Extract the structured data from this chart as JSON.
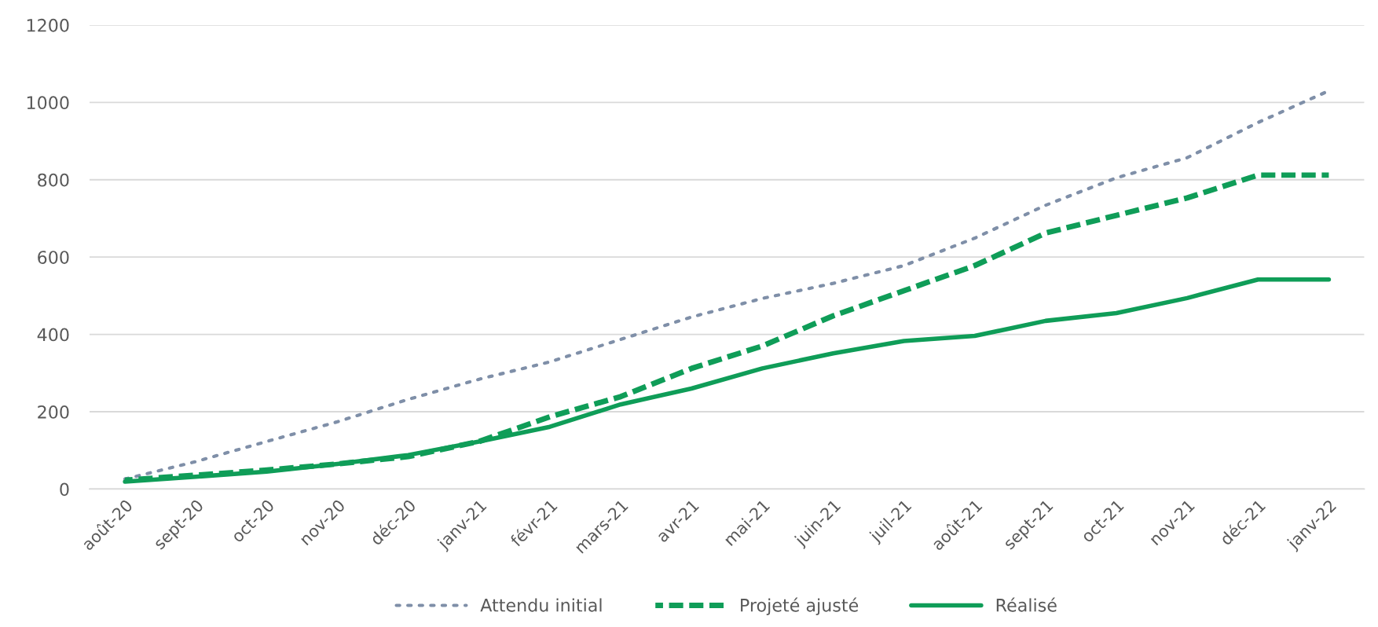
{
  "chart_data": {
    "type": "line",
    "categories": [
      "août-20",
      "sept-20",
      "oct-20",
      "nov-20",
      "déc-20",
      "janv-21",
      "févr-21",
      "mars-21",
      "avr-21",
      "mai-21",
      "juin-21",
      "juil-21",
      "août-21",
      "sept-21",
      "oct-21",
      "nov-21",
      "déc-21",
      "janv-22"
    ],
    "series": [
      {
        "name": "Attendu initial",
        "color": "#7f8fa8",
        "line_style": "dotted",
        "values": [
          26,
          71,
          123,
          174,
          232,
          284,
          329,
          387,
          445,
          493,
          532,
          578,
          649,
          734,
          805,
          857,
          948,
          1030
        ]
      },
      {
        "name": "Projeté ajusté",
        "color": "#0f9d58",
        "line_style": "dashed",
        "values": [
          23,
          36,
          49,
          65,
          84,
          123,
          187,
          239,
          312,
          370,
          448,
          513,
          578,
          662,
          708,
          753,
          812,
          812
        ]
      },
      {
        "name": "Réalisé",
        "color": "#0f9d58",
        "line_style": "solid",
        "values": [
          19,
          32,
          45,
          65,
          88,
          123,
          161,
          219,
          260,
          312,
          351,
          383,
          396,
          435,
          455,
          494,
          542,
          542
        ]
      }
    ],
    "ylim": [
      0,
      1200
    ],
    "yticks": [
      0,
      200,
      400,
      600,
      800,
      1000,
      1200
    ],
    "grid": "y",
    "legend": "bottom"
  }
}
